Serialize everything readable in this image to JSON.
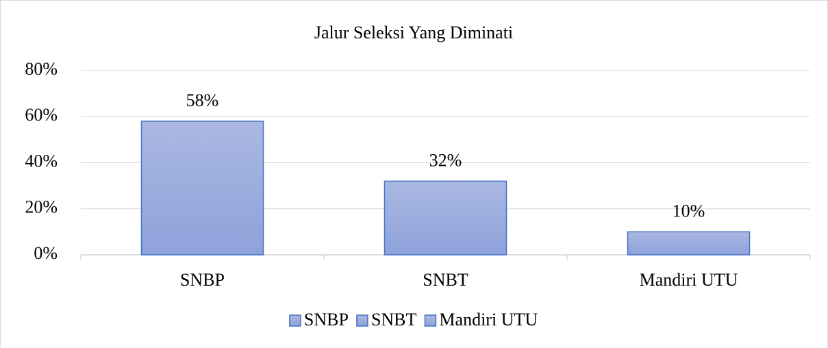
{
  "chart_data": {
    "type": "bar",
    "title": "Jalur Seleksi Yang Diminati",
    "categories": [
      "SNBP",
      "SNBT",
      "Mandiri UTU"
    ],
    "values": [
      58,
      32,
      10
    ],
    "value_labels": [
      "58%",
      "32%",
      "10%"
    ],
    "color": "#8ea2da",
    "ylim": [
      0,
      80
    ],
    "yticks": [
      {
        "value": 0,
        "label": "0%"
      },
      {
        "value": 20,
        "label": "20%"
      },
      {
        "value": 40,
        "label": "40%"
      },
      {
        "value": 60,
        "label": "60%"
      },
      {
        "value": 80,
        "label": "80%"
      }
    ],
    "grid": true,
    "legend": "bottom"
  }
}
